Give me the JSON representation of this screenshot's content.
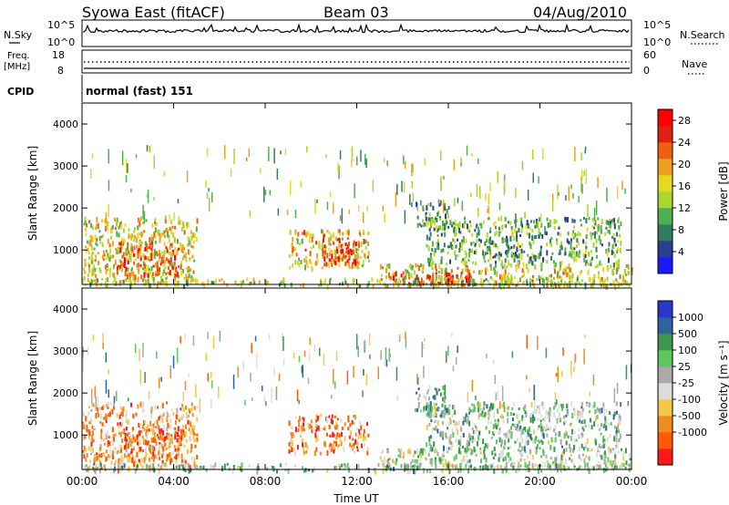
{
  "header": {
    "station": "Syowa East (fitACF)",
    "beam": "Beam 03",
    "date": "04/Aug/2010"
  },
  "status": {
    "nsky_label": "N.Sky",
    "nsky_ticks": [
      "10^5",
      "10^0"
    ],
    "nsearch_label": "N.Search",
    "nsearch_ticks": [
      "10^5",
      "10^0"
    ],
    "freq_label_1": "Freq.",
    "freq_label_2": "[MHz]",
    "freq_ticks": [
      "18",
      "8"
    ],
    "nave_label": "Nave",
    "nave_ticks": [
      "60",
      "0"
    ],
    "cpid_label": "CPID",
    "cpid_value": "normal (fast) 151"
  },
  "colors": {
    "power": [
      "#1a1aff",
      "#2a3f8f",
      "#2f7f5c",
      "#4fb04f",
      "#a8d830",
      "#e8d820",
      "#f0a020",
      "#ee6010",
      "#e02010",
      "#ff0000"
    ],
    "velocity": [
      "#ff1a1a",
      "#ff5a00",
      "#f08c1e",
      "#f5c84b",
      "#dcdcdc",
      "#aaaaaa",
      "#5ac85a",
      "#3c9650",
      "#2d64a0",
      "#2838c8"
    ]
  },
  "chart_data": [
    {
      "type": "heatmap",
      "panel": "power",
      "xlabel": "",
      "ylabel": "Slant Range [km]",
      "ylim": [
        180,
        4500
      ],
      "yticks": [
        "4000",
        "3000",
        "2000",
        "1000"
      ],
      "ytick_values": [
        4000,
        3000,
        2000,
        1000
      ],
      "xlim": [
        0,
        24
      ],
      "colorbar_label": "Power [dB]",
      "colorbar_ticks": [
        "28",
        "24",
        "20",
        "16",
        "12",
        "8",
        "4"
      ],
      "colorbar_values": [
        28,
        24,
        20,
        16,
        12,
        8,
        4
      ],
      "colorbar_range": [
        0,
        30
      ],
      "regions": [
        {
          "t": [
            0.0,
            5.0
          ],
          "r": [
            200,
            1800
          ],
          "level": 0.55
        },
        {
          "t": [
            1.5,
            4.5
          ],
          "r": [
            400,
            1200
          ],
          "level": 0.75
        },
        {
          "t": [
            9.0,
            12.5
          ],
          "r": [
            600,
            1500
          ],
          "level": 0.6
        },
        {
          "t": [
            10.5,
            12.0
          ],
          "r": [
            700,
            1300
          ],
          "level": 0.85
        },
        {
          "t": [
            13.0,
            24.0
          ],
          "r": [
            200,
            700
          ],
          "level": 0.55
        },
        {
          "t": [
            13.5,
            17.0
          ],
          "r": [
            200,
            500
          ],
          "level": 0.9
        },
        {
          "t": [
            14.5,
            16.0
          ],
          "r": [
            1500,
            2200
          ],
          "level": 0.3
        },
        {
          "t": [
            15.0,
            23.5
          ],
          "r": [
            700,
            1800
          ],
          "level": 0.35
        },
        {
          "t": [
            0.0,
            24.0
          ],
          "r": [
            180,
            350
          ],
          "level": 0.45
        }
      ]
    },
    {
      "type": "heatmap",
      "panel": "velocity",
      "xlabel": "Time UT",
      "ylabel": "Slant Range [km]",
      "ylim": [
        180,
        4500
      ],
      "yticks": [
        "4000",
        "3000",
        "2000",
        "1000"
      ],
      "ytick_values": [
        4000,
        3000,
        2000,
        1000
      ],
      "xlim": [
        0,
        24
      ],
      "xticks": [
        "00:00",
        "04:00",
        "08:00",
        "12:00",
        "16:00",
        "20:00",
        "00:00"
      ],
      "xtick_values": [
        0,
        4,
        8,
        12,
        16,
        20,
        24
      ],
      "colorbar_label": "Velocity [m s⁻¹]",
      "colorbar_ticks": [
        "1000",
        "500",
        "100",
        "25",
        "-25",
        "-100",
        "-500",
        "-1000"
      ],
      "colorbar_values": [
        1000,
        500,
        100,
        25,
        -25,
        -100,
        -500,
        -1000
      ],
      "regions": [
        {
          "t": [
            0.0,
            5.0
          ],
          "r": [
            200,
            1800
          ],
          "level": 0.3
        },
        {
          "t": [
            1.5,
            4.5
          ],
          "r": [
            400,
            1200
          ],
          "level": 0.2
        },
        {
          "t": [
            9.0,
            12.5
          ],
          "r": [
            600,
            1500
          ],
          "level": 0.25
        },
        {
          "t": [
            13.0,
            24.0
          ],
          "r": [
            200,
            700
          ],
          "level": 0.55
        },
        {
          "t": [
            14.5,
            16.0
          ],
          "r": [
            1500,
            2200
          ],
          "level": 0.65
        },
        {
          "t": [
            15.0,
            23.5
          ],
          "r": [
            700,
            1800
          ],
          "level": 0.6
        },
        {
          "t": [
            0.0,
            24.0
          ],
          "r": [
            180,
            350
          ],
          "level": 0.6
        }
      ]
    }
  ]
}
